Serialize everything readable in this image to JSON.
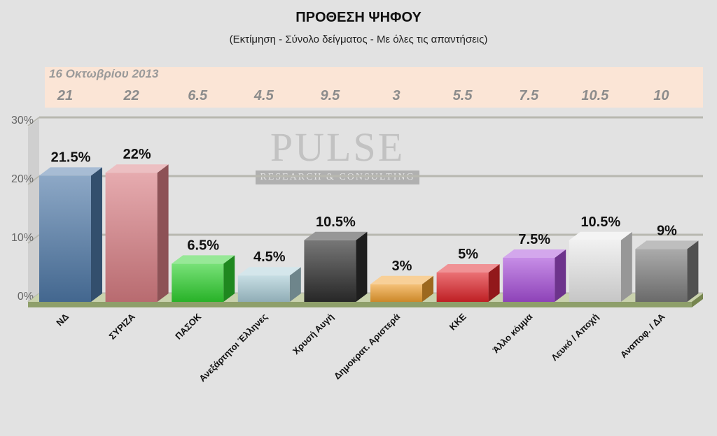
{
  "chart_data": {
    "type": "bar",
    "title": "ΠΡΟΘΕΣΗ ΨΗΦΟΥ",
    "subtitle": "(Εκτίμηση - Σύνολο δείγματος - Με όλες τις απαντήσεις)",
    "categories": [
      "ΝΔ",
      "ΣΥΡΙΖΑ",
      "ΠΑΣΟΚ",
      "Ανεξάρτητοι Έλληνες",
      "Χρυσή Αυγή",
      "Δημοκρατ. Αριστερά",
      "ΚΚΕ",
      "Άλλο κόμμα",
      "Λευκό / Αποχή",
      "Αναποφ. / ΔΑ"
    ],
    "values": [
      21.5,
      22,
      6.5,
      4.5,
      10.5,
      3,
      5,
      7.5,
      10.5,
      9
    ],
    "value_labels": [
      "21.5%",
      "22%",
      "6.5%",
      "4.5%",
      "10.5%",
      "3%",
      "5%",
      "7.5%",
      "10.5%",
      "9%"
    ],
    "colors": [
      "#4f79a8",
      "#d97e84",
      "#2fd12f",
      "#a9ccd6",
      "#2e2e2e",
      "#f0a030",
      "#e0252a",
      "#a74fd8",
      "#e9e9e9",
      "#7d7d7d"
    ],
    "comparison": {
      "label": "16 Οκτωβρίου 2013",
      "values": [
        "21",
        "22",
        "6.5",
        "4.5",
        "9.5",
        "3",
        "5.5",
        "7.5",
        "10.5",
        "10"
      ]
    },
    "ylim": [
      0,
      30
    ],
    "yticks": [
      "0%",
      "10%",
      "20%",
      "30%"
    ],
    "grid": true,
    "xlabel": "",
    "ylabel": ""
  },
  "watermark": {
    "main": "PULSE",
    "sub": "RESEARCH & CONSULTING"
  }
}
